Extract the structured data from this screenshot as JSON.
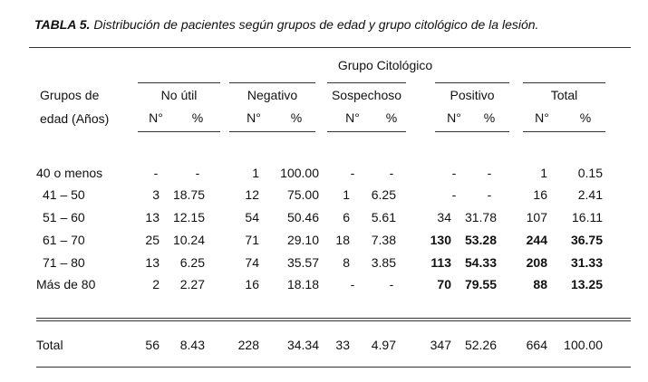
{
  "caption": {
    "label": "TABLA 5.",
    "text": "Distribución de pacientes según grupos de edad y grupo citológico de la lesión."
  },
  "table": {
    "super_header": "Grupo Citológico",
    "row_header": [
      "Grupos de",
      "edad (Años)"
    ],
    "groups": [
      "No útil",
      "Negativo",
      "Sospechoso",
      "Positivo",
      "Total"
    ],
    "sub_headers": [
      "N°",
      "%",
      "N°",
      "%",
      "N°",
      "%",
      "N°",
      "%",
      "N°",
      "%"
    ],
    "rows": [
      {
        "label": "40 o menos",
        "values": [
          "-",
          "-",
          "1",
          "100.00",
          "-",
          "-",
          "-",
          "-",
          "1",
          "0.15"
        ],
        "bold": [
          false,
          false,
          false,
          false,
          false,
          false,
          false,
          false,
          false,
          false
        ]
      },
      {
        "label": "41 – 50",
        "values": [
          "3",
          "18.75",
          "12",
          "75.00",
          "1",
          "6.25",
          "-",
          "-",
          "16",
          "2.41"
        ],
        "bold": [
          false,
          false,
          false,
          false,
          false,
          false,
          false,
          false,
          false,
          false
        ]
      },
      {
        "label": "51 – 60",
        "values": [
          "13",
          "12.15",
          "54",
          "50.46",
          "6",
          "5.61",
          "34",
          "31.78",
          "107",
          "16.11"
        ],
        "bold": [
          false,
          false,
          false,
          false,
          false,
          false,
          false,
          false,
          false,
          false
        ]
      },
      {
        "label": "61 – 70",
        "values": [
          "25",
          "10.24",
          "71",
          "29.10",
          "18",
          "7.38",
          "130",
          "53.28",
          "244",
          "36.75"
        ],
        "bold": [
          false,
          false,
          false,
          false,
          false,
          false,
          true,
          true,
          true,
          true
        ]
      },
      {
        "label": "71 – 80",
        "values": [
          "13",
          "6.25",
          "74",
          "35.57",
          "8",
          "3.85",
          "113",
          "54.33",
          "208",
          "31.33"
        ],
        "bold": [
          false,
          false,
          false,
          false,
          false,
          false,
          true,
          true,
          true,
          true
        ]
      },
      {
        "label": "Más de 80",
        "values": [
          "2",
          "2.27",
          "16",
          "18.18",
          "-",
          "-",
          "70",
          "79.55",
          "88",
          "13.25"
        ],
        "bold": [
          false,
          false,
          false,
          false,
          false,
          false,
          true,
          true,
          true,
          true
        ]
      }
    ],
    "total": {
      "label": "Total",
      "values": [
        "56",
        "8.43",
        "228",
        "34.34",
        "33",
        "4.97",
        "347",
        "52.26",
        "664",
        "100.00"
      ]
    }
  }
}
